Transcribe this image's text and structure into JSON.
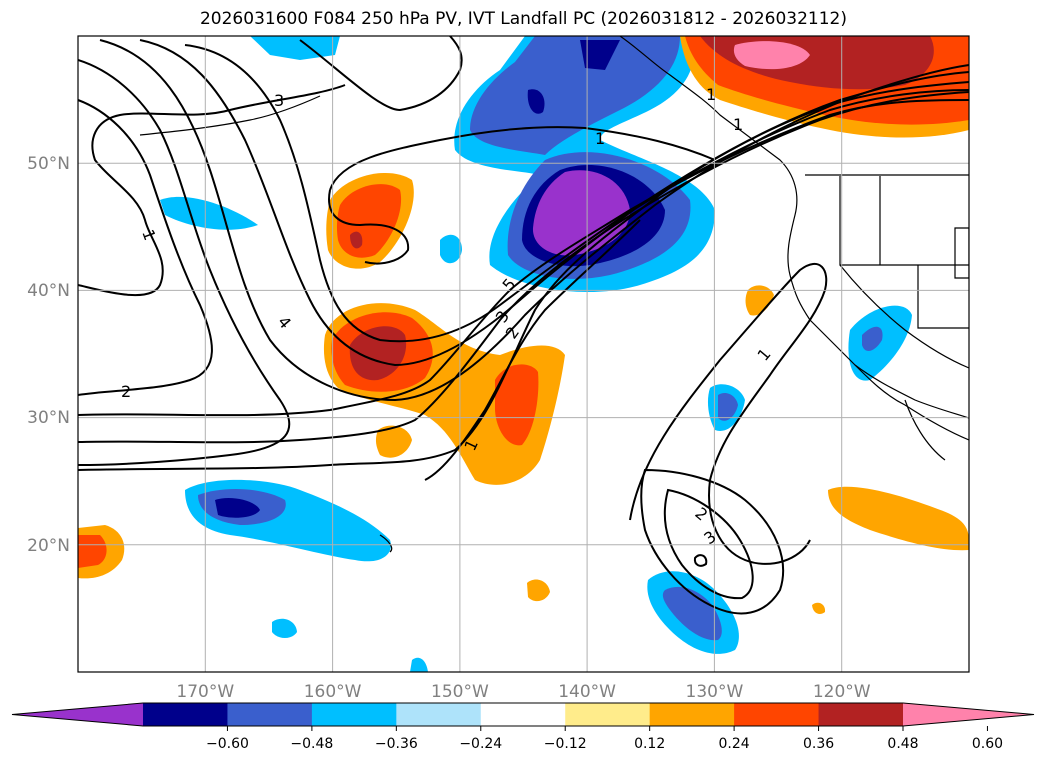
{
  "title": "2026031600 F084 250 hPa PV, IVT Landfall PC (2026031812 - 2026032112)",
  "map": {
    "lon_range": [
      -180,
      -110
    ],
    "lat_range": [
      10,
      60
    ],
    "lon_labels": [
      "170°W",
      "160°W",
      "150°W",
      "140°W",
      "130°W",
      "120°W"
    ],
    "lat_labels": [
      "50°N",
      "40°N",
      "30°N",
      "20°N"
    ],
    "grid": true,
    "contour_labels": [
      "1",
      "2",
      "3",
      "4",
      "5",
      "1",
      "2",
      "3",
      "1",
      "2",
      "3",
      "1",
      "1",
      "1"
    ]
  },
  "colorbar": {
    "colors": [
      "#9932cc",
      "#00008b",
      "#3a5fcd",
      "#00bfff",
      "#aee3fa",
      "#ffffff",
      "#ffec8b",
      "#ffa500",
      "#ff4500",
      "#b22222",
      "#ff82ab"
    ],
    "tick_labels": [
      "−0.60",
      "−0.48",
      "−0.36",
      "−0.24",
      "−0.12",
      "0.12",
      "0.24",
      "0.36",
      "0.48",
      "0.60"
    ],
    "extend": "both"
  }
}
